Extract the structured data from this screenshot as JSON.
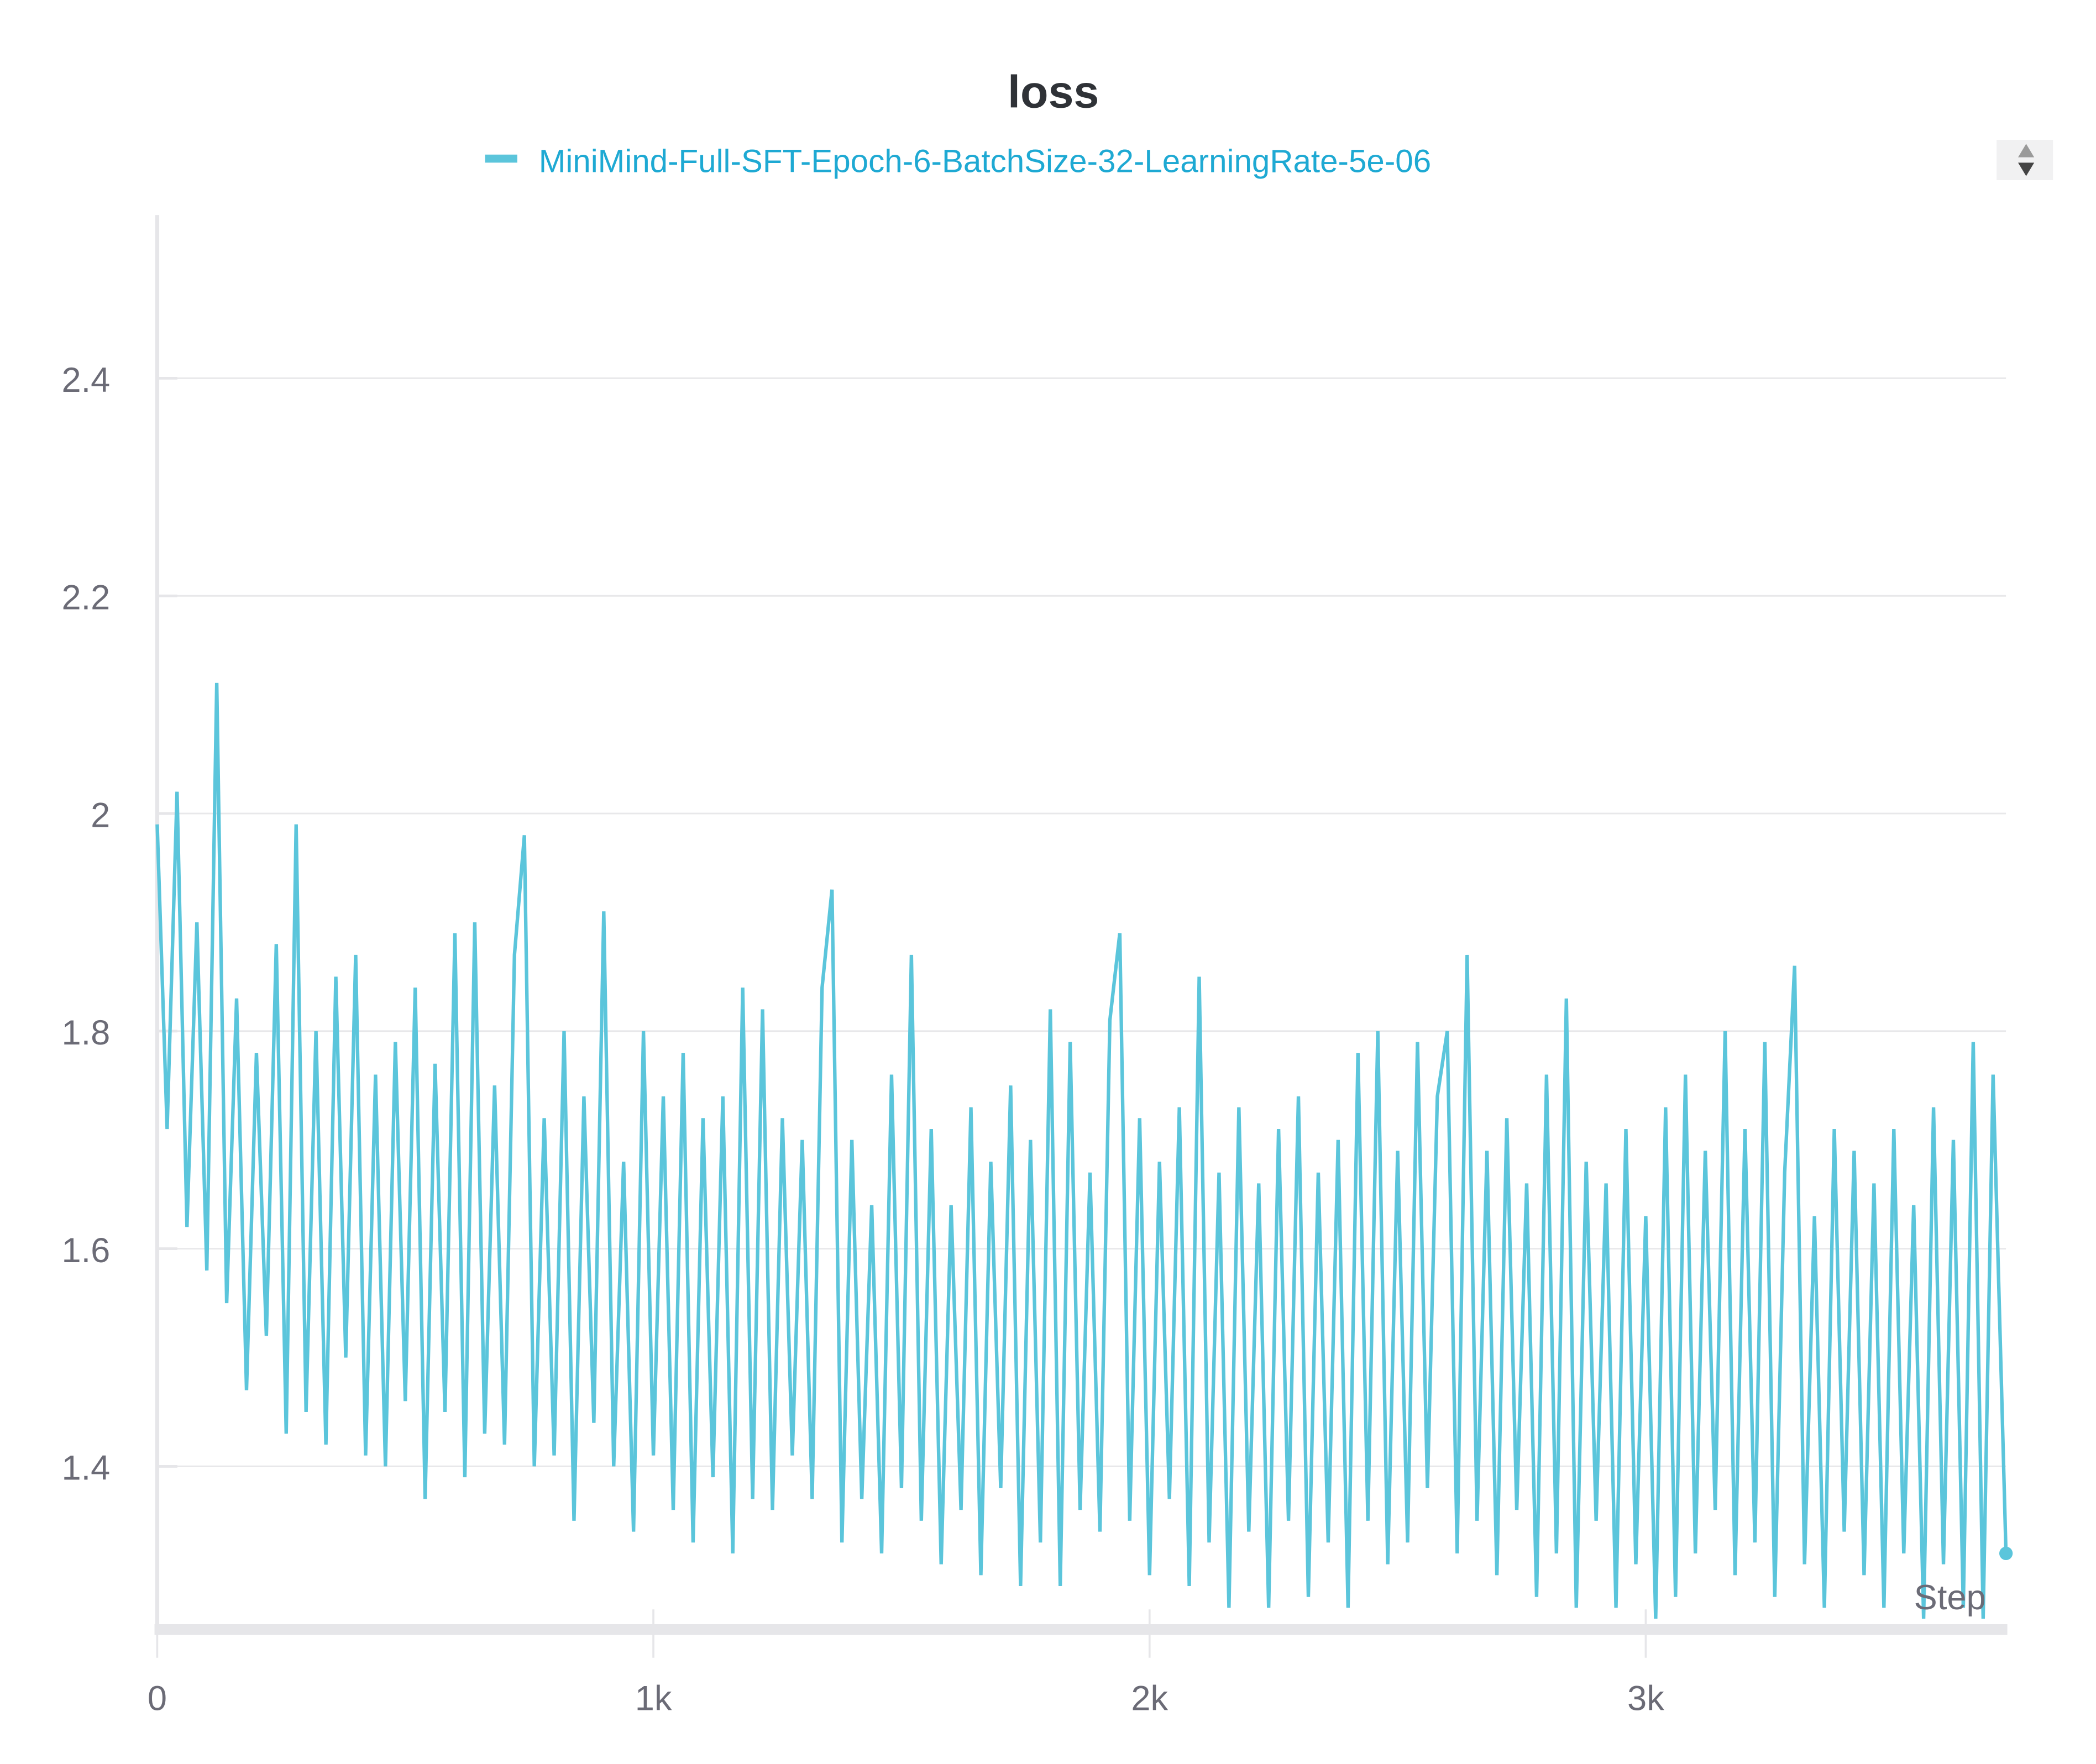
{
  "chart_data": {
    "type": "line",
    "title": "loss",
    "xlabel": "Step",
    "ylabel": "",
    "xlim": [
      0,
      3726
    ],
    "ylim": [
      1.25,
      2.55
    ],
    "grid": true,
    "legend_placement": "top-center",
    "x_ticks": [
      {
        "value": 0,
        "label": "0"
      },
      {
        "value": 1000,
        "label": "1k"
      },
      {
        "value": 2000,
        "label": "2k"
      },
      {
        "value": 3000,
        "label": "3k"
      }
    ],
    "y_ticks": [
      {
        "value": 1.4,
        "label": "1.4"
      },
      {
        "value": 1.6,
        "label": "1.6"
      },
      {
        "value": 1.8,
        "label": "1.8"
      },
      {
        "value": 2.0,
        "label": "2"
      },
      {
        "value": 2.2,
        "label": "2.2"
      },
      {
        "value": 2.4,
        "label": "2.4"
      }
    ],
    "series": [
      {
        "name": "MiniMind-Full-SFT-Epoch-6-BatchSize-32-LearningRate-5e-06",
        "color": "#5bc5db",
        "x_start": 0,
        "x_step": 20,
        "values": [
          1.99,
          1.71,
          2.02,
          1.62,
          1.9,
          1.58,
          2.12,
          1.55,
          1.83,
          1.47,
          1.78,
          1.52,
          1.88,
          1.43,
          1.99,
          1.45,
          1.8,
          1.42,
          1.85,
          1.5,
          1.87,
          1.41,
          1.76,
          1.4,
          1.79,
          1.46,
          1.84,
          1.37,
          1.77,
          1.45,
          1.89,
          1.39,
          1.9,
          1.43,
          1.75,
          1.42,
          1.87,
          1.98,
          1.4,
          1.72,
          1.41,
          1.8,
          1.35,
          1.74,
          1.44,
          1.91,
          1.4,
          1.68,
          1.34,
          1.8,
          1.41,
          1.74,
          1.36,
          1.78,
          1.33,
          1.72,
          1.39,
          1.74,
          1.32,
          1.84,
          1.37,
          1.82,
          1.36,
          1.72,
          1.41,
          1.7,
          1.37,
          1.84,
          1.93,
          1.33,
          1.7,
          1.37,
          1.64,
          1.32,
          1.76,
          1.38,
          1.87,
          1.35,
          1.71,
          1.31,
          1.64,
          1.36,
          1.73,
          1.3,
          1.68,
          1.38,
          1.75,
          1.29,
          1.7,
          1.33,
          1.82,
          1.29,
          1.79,
          1.36,
          1.67,
          1.34,
          1.81,
          1.89,
          1.35,
          1.72,
          1.3,
          1.68,
          1.37,
          1.73,
          1.29,
          1.85,
          1.33,
          1.67,
          1.27,
          1.73,
          1.34,
          1.66,
          1.27,
          1.71,
          1.35,
          1.74,
          1.28,
          1.67,
          1.33,
          1.7,
          1.27,
          1.78,
          1.35,
          1.8,
          1.31,
          1.69,
          1.33,
          1.79,
          1.38,
          1.74,
          1.8,
          1.32,
          1.87,
          1.35,
          1.69,
          1.3,
          1.72,
          1.36,
          1.66,
          1.28,
          1.76,
          1.32,
          1.83,
          1.27,
          1.68,
          1.35,
          1.66,
          1.27,
          1.71,
          1.31,
          1.63,
          1.26,
          1.73,
          1.28,
          1.76,
          1.32,
          1.69,
          1.36,
          1.8,
          1.3,
          1.71,
          1.33,
          1.79,
          1.28,
          1.67,
          1.86,
          1.31,
          1.63,
          1.27,
          1.71,
          1.34,
          1.69,
          1.3,
          1.66,
          1.27,
          1.71,
          1.32,
          1.64,
          1.26,
          1.73,
          1.31,
          1.7,
          1.27,
          1.79,
          1.26,
          1.76,
          1.32
        ]
      }
    ]
  },
  "legend_scroll": {
    "up_icon": "triangle-up",
    "down_icon": "triangle-down"
  }
}
